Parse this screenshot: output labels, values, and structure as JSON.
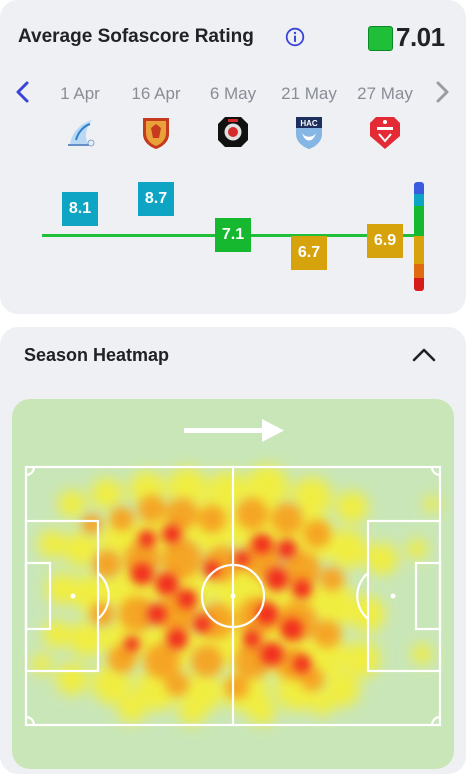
{
  "rating": {
    "title": "Average Sofascore Rating",
    "average": "7.01",
    "average_color": "#1fbf3a",
    "info_icon": "info-icon",
    "matches": [
      {
        "date": "1 Apr",
        "rating": "8.1",
        "color": "#0ea5c4",
        "logo": "crest-white-blue"
      },
      {
        "date": "16 Apr",
        "rating": "8.7",
        "color": "#0ea5c4",
        "logo": "crest-red-gold"
      },
      {
        "date": "6 May",
        "rating": "7.1",
        "color": "#16b82f",
        "logo": "crest-black-red"
      },
      {
        "date": "21 May",
        "rating": "6.7",
        "color": "#d6a30c",
        "logo": "crest-hac-blue"
      },
      {
        "date": "27 May",
        "rating": "6.9",
        "color": "#d6a30c",
        "logo": "crest-dfco-red"
      }
    ],
    "scale_colors": [
      "#3a5be0",
      "#0ea5c4",
      "#16b82f",
      "#d6a30c",
      "#e06a10",
      "#d61b1b"
    ]
  },
  "heatmap": {
    "title": "Season Heatmap",
    "collapse_icon": "chevron-up-icon",
    "direction_icon": "arrow-right-icon"
  }
}
